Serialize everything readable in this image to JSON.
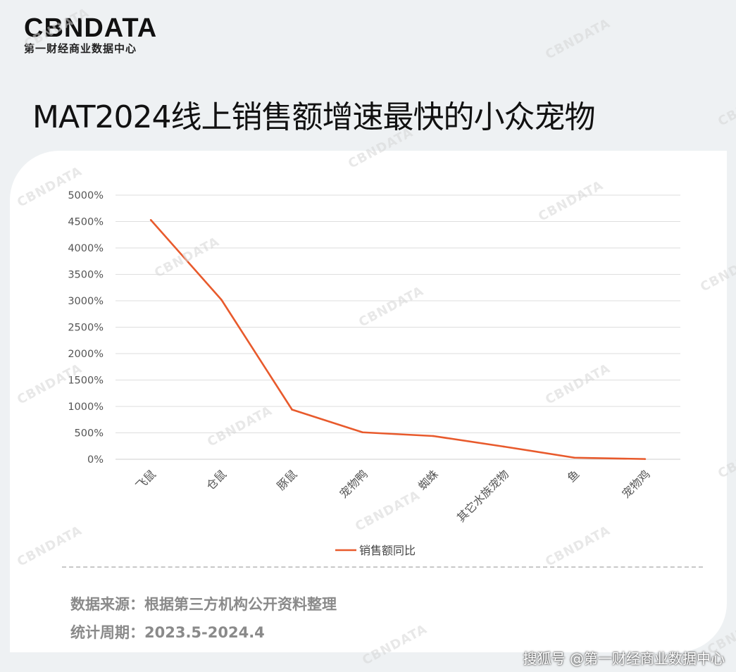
{
  "brand": {
    "logo_text": "CBNDATA",
    "subtitle": "第一财经商业数据中心"
  },
  "title": "MAT2024线上销售额增速最快的小众宠物",
  "chart_data": {
    "type": "line",
    "categories": [
      "飞鼠",
      "仓鼠",
      "豚鼠",
      "宠物鸭",
      "蜘蛛",
      "其它水族宠物",
      "鱼",
      "宠物鸡"
    ],
    "series": [
      {
        "name": "销售额同比",
        "values": [
          4530,
          3020,
          940,
          510,
          440,
          240,
          30,
          5
        ],
        "color": "#e85a2c"
      }
    ],
    "y_ticks": [
      "0%",
      "500%",
      "1000%",
      "1500%",
      "2000%",
      "2500%",
      "3000%",
      "3500%",
      "4000%",
      "4500%",
      "5000%"
    ],
    "ylim": [
      0,
      5000
    ],
    "y_unit": "%",
    "grid": true,
    "legend_position": "bottom-center"
  },
  "source": {
    "line1": "数据来源：根据第三方机构公开资料整理",
    "line2": "统计周期：2023.5-2024.4"
  },
  "footer": {
    "watermark": "搜狐号 @第一财经商业数据中心"
  },
  "watermark_text": "CBNDATA"
}
